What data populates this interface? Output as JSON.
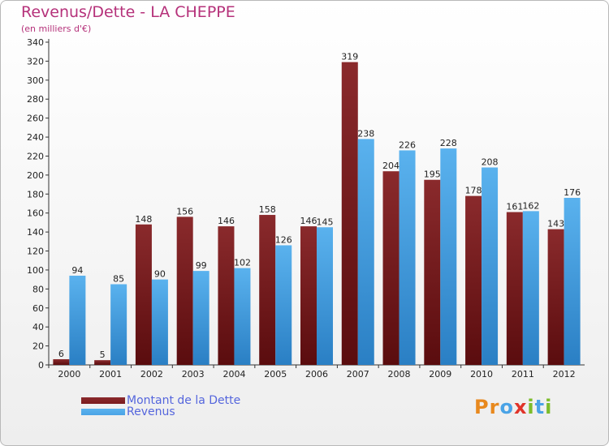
{
  "header": {
    "title": "Revenus/Dette - LA CHEPPE",
    "subtitle": "(en milliers d'€)"
  },
  "colors": {
    "debt": "#7a1a1c",
    "revenue": "#4aa3e6",
    "title": "#b5317a",
    "legend_text": "#5566dd"
  },
  "legend": {
    "debt_label": "Montant de la Dette",
    "revenue_label": "Revenus"
  },
  "logo": {
    "text": "Proxiti",
    "letters": [
      {
        "ch": "P",
        "color": "#e8891e"
      },
      {
        "ch": "r",
        "color": "#e8891e"
      },
      {
        "ch": "o",
        "color": "#4aa3e6"
      },
      {
        "ch": "x",
        "color": "#e0342a"
      },
      {
        "ch": "i",
        "color": "#7cbc2a"
      },
      {
        "ch": "t",
        "color": "#4aa3e6"
      },
      {
        "ch": "i",
        "color": "#7cbc2a"
      }
    ]
  },
  "chart_data": {
    "type": "bar",
    "categories": [
      "2000",
      "2001",
      "2002",
      "2003",
      "2004",
      "2005",
      "2006",
      "2007",
      "2008",
      "2009",
      "2010",
      "2011",
      "2012"
    ],
    "series": [
      {
        "name": "Montant de la Dette",
        "values": [
          6,
          5,
          148,
          156,
          146,
          158,
          146,
          319,
          204,
          195,
          178,
          161,
          143
        ]
      },
      {
        "name": "Revenus",
        "values": [
          94,
          85,
          90,
          99,
          102,
          126,
          145,
          238,
          226,
          228,
          208,
          162,
          176
        ]
      }
    ],
    "ylim": [
      0,
      340
    ],
    "yticks": [
      0,
      20,
      40,
      60,
      80,
      100,
      120,
      140,
      160,
      180,
      200,
      220,
      240,
      260,
      280,
      300,
      320,
      340
    ],
    "grid": false,
    "legend_position": "bottom-left"
  }
}
